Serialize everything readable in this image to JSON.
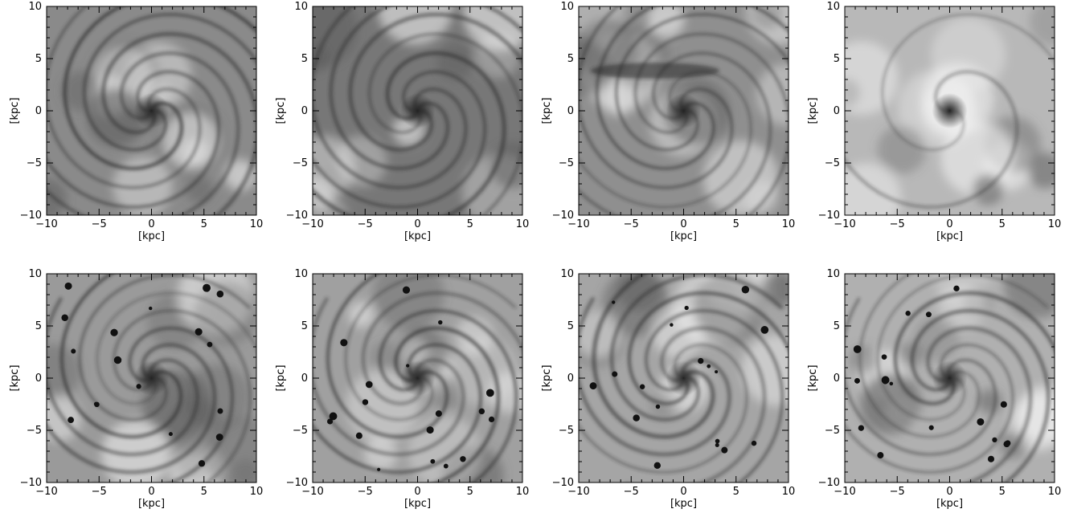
{
  "figure": {
    "axis_unit_label": "[kpc]",
    "tick_values": [
      -10,
      -5,
      0,
      5,
      10
    ],
    "axis_range": [
      -10,
      10
    ],
    "rows": 2,
    "columns": 4,
    "colormap": "grayscale",
    "panels": [
      {
        "id": "p1",
        "content": "two-armed spiral gas disc, dense arms",
        "tone": "#8a8a8a"
      },
      {
        "id": "p2",
        "content": "multi-armed spiral gas disc",
        "tone": "#777777"
      },
      {
        "id": "p3",
        "content": "spiral disc with dark dense strip along top",
        "tone": "#8f8f8f"
      },
      {
        "id": "p4",
        "content": "tidally distorted disc with bright background",
        "tone": "#b8b8b8"
      },
      {
        "id": "p5",
        "content": "fragmented spiral arms with clumps",
        "tone": "#9a9a9a"
      },
      {
        "id": "p6",
        "content": "spiral disc with clumps on outer arms",
        "tone": "#a0a0a0"
      },
      {
        "id": "p7",
        "content": "disrupted disc with scattered dense clumps",
        "tone": "#a5a5a5"
      },
      {
        "id": "p8",
        "content": "ring-like core with scattered clumps",
        "tone": "#b0b0b0"
      }
    ]
  }
}
